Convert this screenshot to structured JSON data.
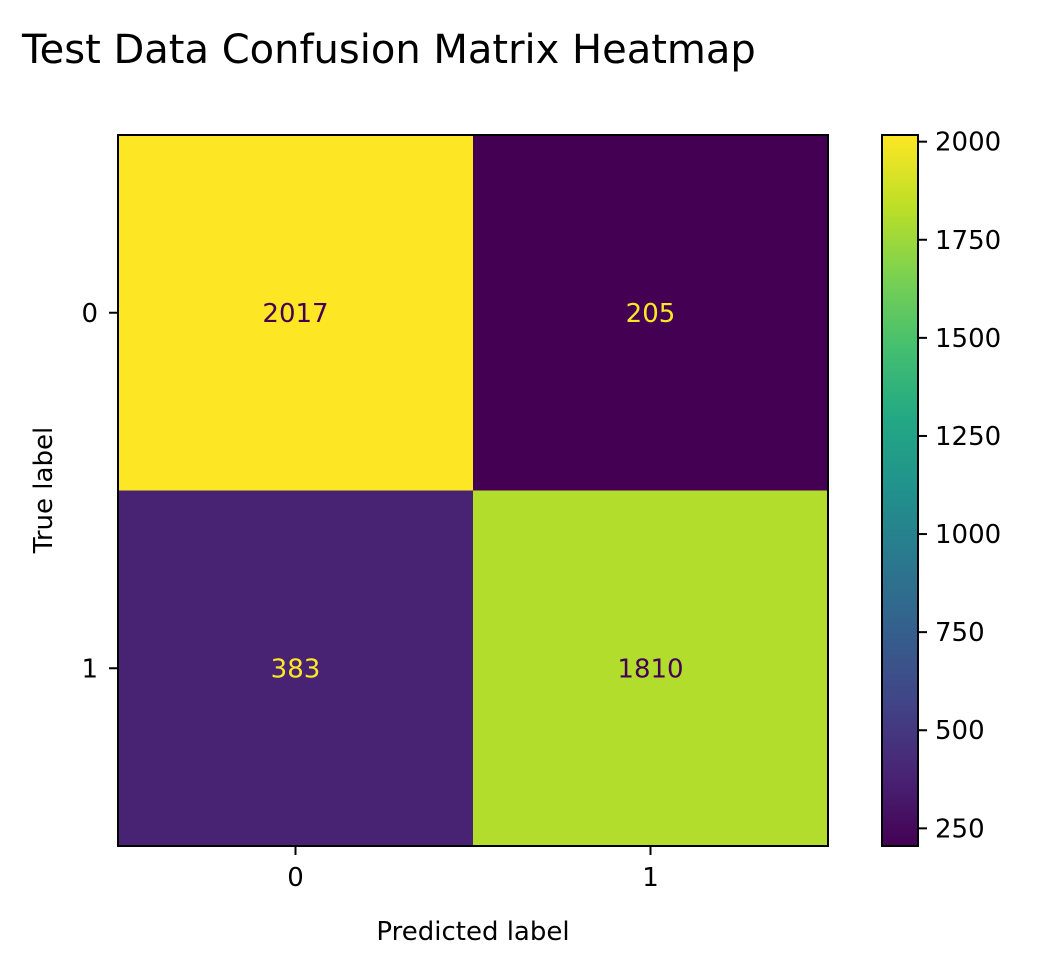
{
  "chart_data": {
    "type": "heatmap",
    "title": "Test Data Confusion Matrix Heatmap",
    "xlabel": "Predicted label",
    "ylabel": "True label",
    "x_categories": [
      "0",
      "1"
    ],
    "y_categories": [
      "0",
      "1"
    ],
    "values": [
      [
        2017,
        205
      ],
      [
        383,
        1810
      ]
    ],
    "colormap": "viridis",
    "color_range": [
      205,
      2017
    ],
    "colorbar_ticks": [
      250,
      500,
      750,
      1000,
      1250,
      1500,
      1750,
      2000
    ],
    "colorbar_tick_labels": [
      "250",
      "500",
      "750",
      "1000",
      "1250",
      "1500",
      "1750",
      "2000"
    ],
    "cell_text_colors": {
      "on_dark": "#fde725",
      "on_light": "#440154"
    }
  }
}
